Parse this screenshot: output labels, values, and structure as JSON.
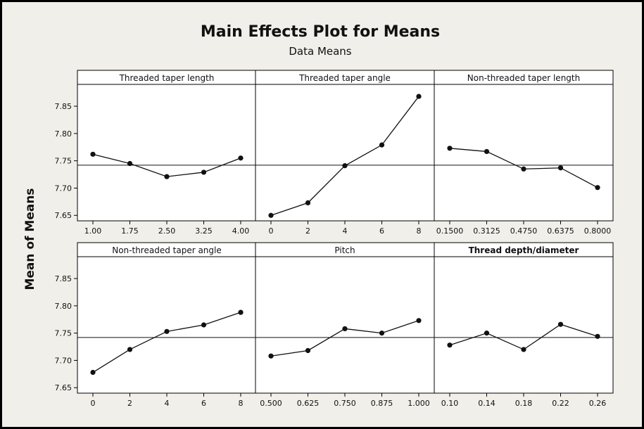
{
  "chart_data": {
    "type": "line",
    "title": "Main Effects Plot for Means",
    "subtitle": "Data Means",
    "ylabel": "Mean of Means",
    "ylim": [
      7.64,
      7.89
    ],
    "yticks": [
      "7.65",
      "7.70",
      "7.75",
      "7.80",
      "7.85"
    ],
    "yticks_values": [
      7.65,
      7.7,
      7.75,
      7.8,
      7.85
    ],
    "reference_line": 7.742,
    "colors": {
      "background": "#f0efe9",
      "panel": "#ffffff",
      "header": "#ffffff",
      "line": "#111111",
      "border": "#000000"
    },
    "panels": [
      {
        "title": "Threaded taper length",
        "categories": [
          "1.00",
          "1.75",
          "2.50",
          "3.25",
          "4.00"
        ],
        "values": [
          7.762,
          7.745,
          7.721,
          7.729,
          7.755
        ]
      },
      {
        "title": "Threaded taper angle",
        "categories": [
          "0",
          "2",
          "4",
          "6",
          "8"
        ],
        "values": [
          7.65,
          7.673,
          7.741,
          7.779,
          7.868
        ]
      },
      {
        "title": "Non-threaded taper length",
        "categories": [
          "0.1500",
          "0.3125",
          "0.4750",
          "0.6375",
          "0.8000"
        ],
        "values": [
          7.773,
          7.767,
          7.735,
          7.737,
          7.701
        ]
      },
      {
        "title": "Non-threaded taper angle",
        "categories": [
          "0",
          "2",
          "4",
          "6",
          "8"
        ],
        "values": [
          7.678,
          7.72,
          7.753,
          7.765,
          7.788
        ]
      },
      {
        "title": "Pitch",
        "categories": [
          "0.500",
          "0.625",
          "0.750",
          "0.875",
          "1.000"
        ],
        "values": [
          7.708,
          7.718,
          7.758,
          7.75,
          7.773
        ]
      },
      {
        "title": "Thread depth/diameter",
        "categories": [
          "0.10",
          "0.14",
          "0.18",
          "0.22",
          "0.26"
        ],
        "values": [
          7.728,
          7.75,
          7.72,
          7.766,
          7.744
        ]
      }
    ]
  }
}
